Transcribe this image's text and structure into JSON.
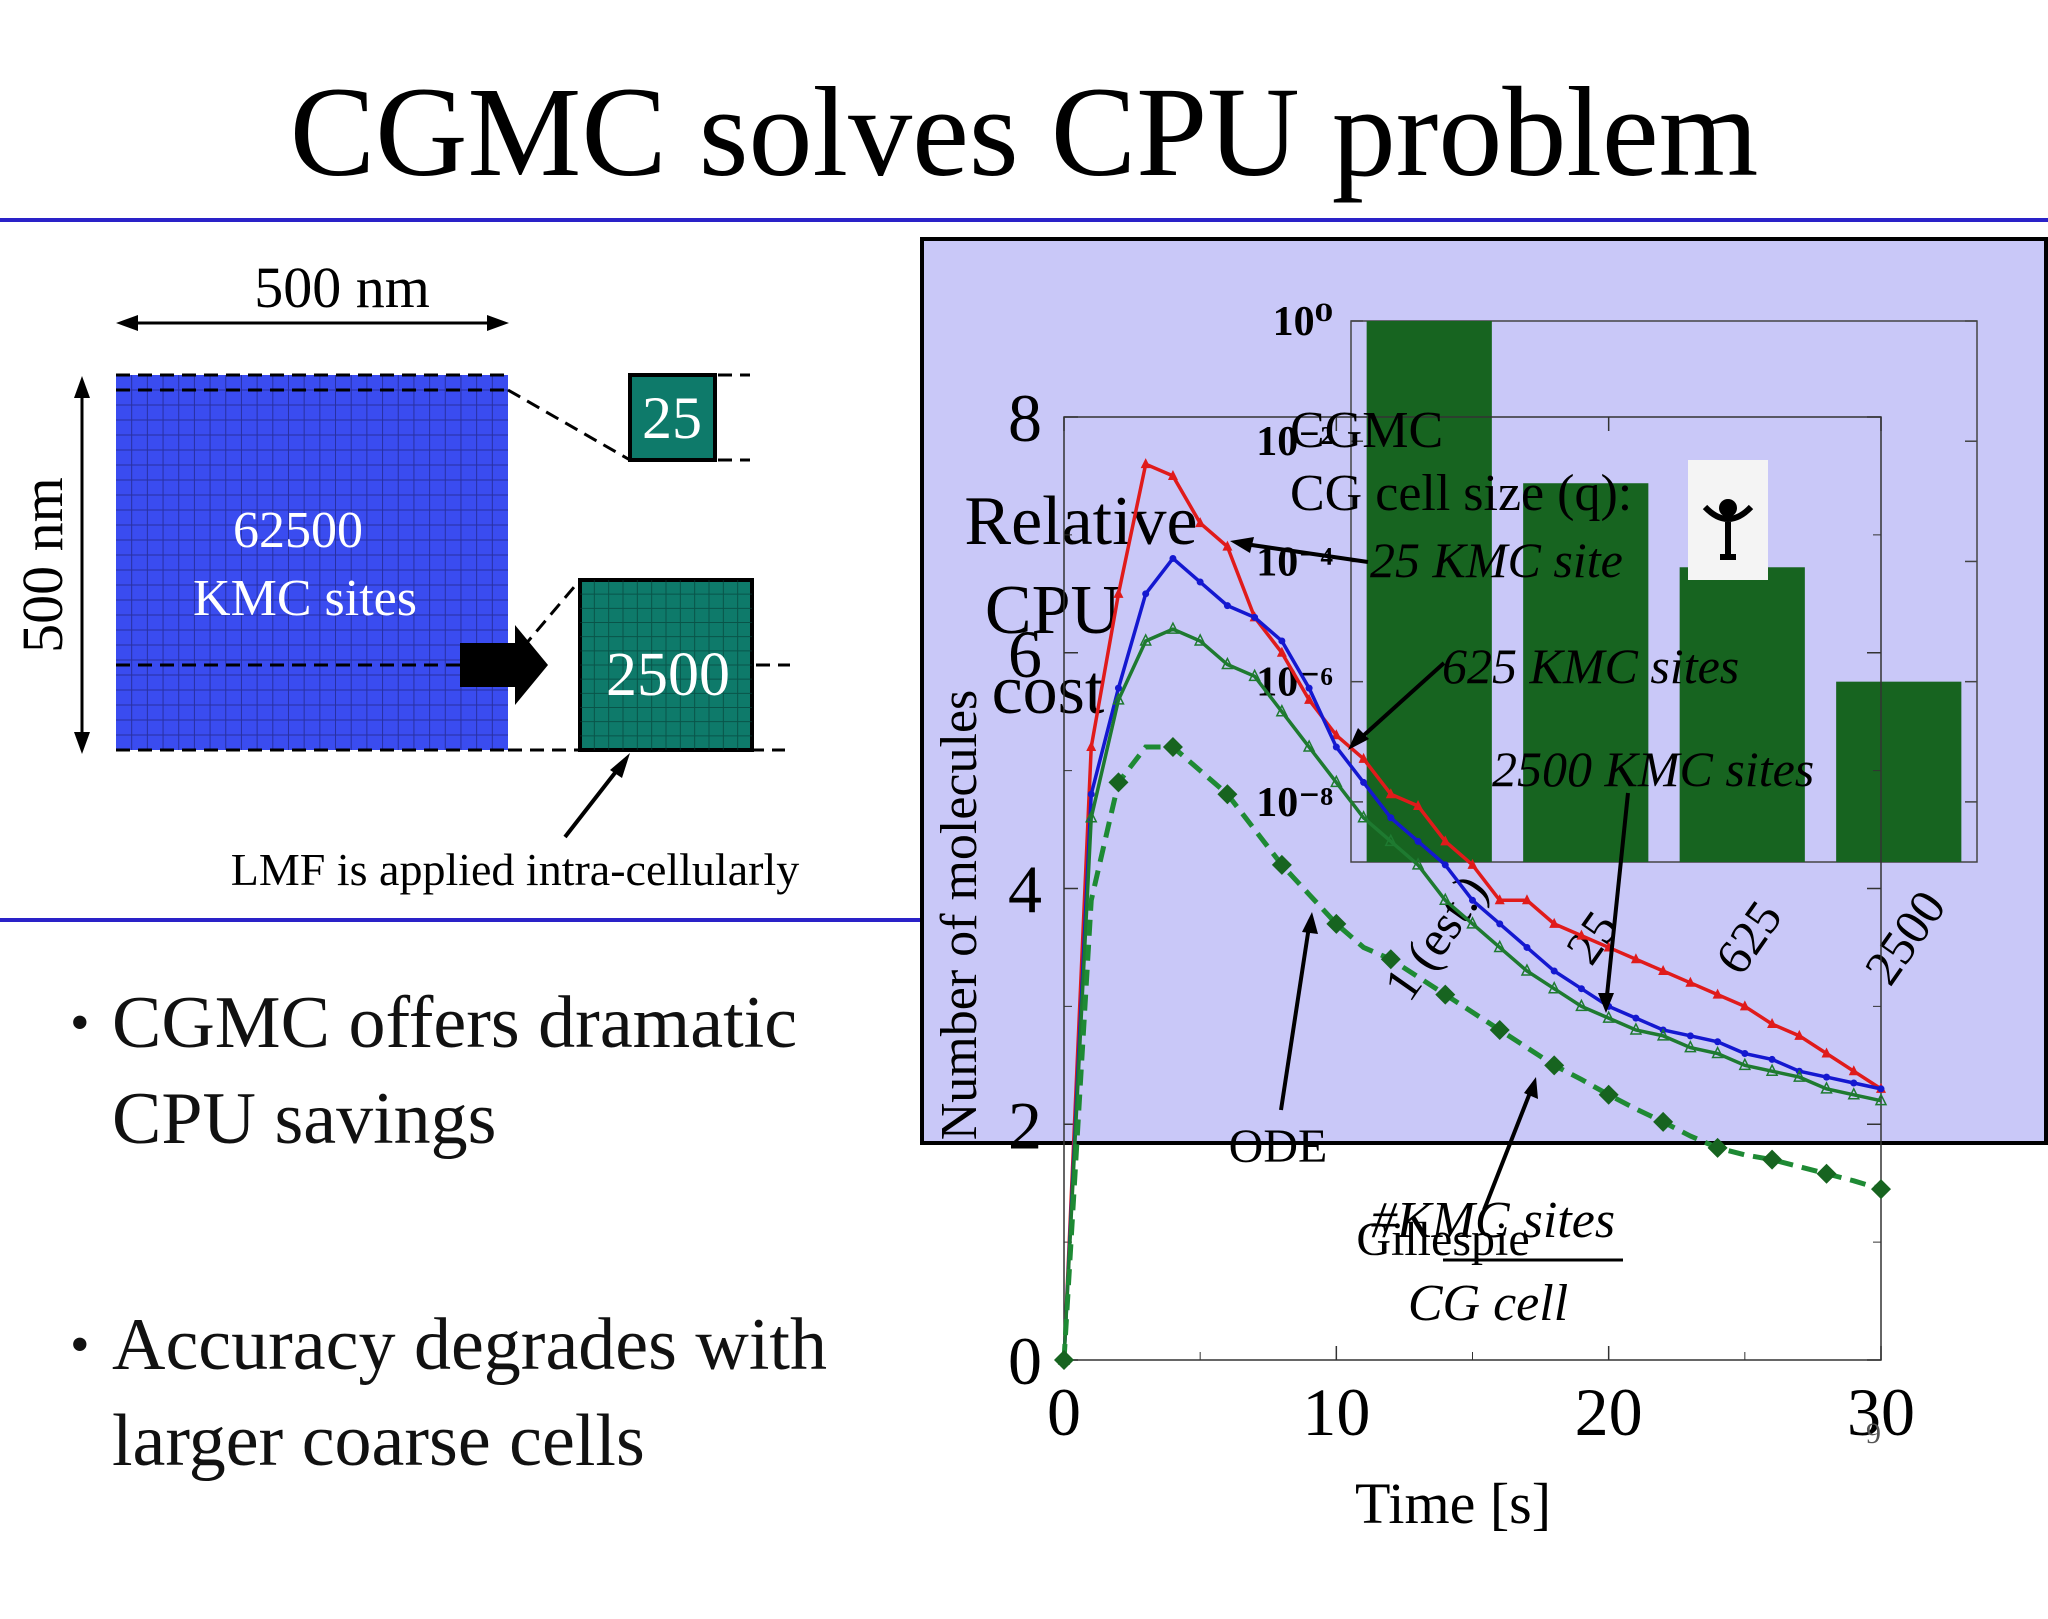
{
  "title": "CGMC solves CPU problem",
  "diagram": {
    "width_label": "500 nm",
    "height_label": "500 nm",
    "sites_count": "62500",
    "sites_label": "KMC sites",
    "small_cell": "25",
    "large_cell": "2500",
    "lmf_note": "LMF is applied intra-cellularly"
  },
  "bullets": [
    "CGMC offers dramatic\nCPU savings",
    "Accuracy degrades with\nlarger coarse cells"
  ],
  "slide_number": "9",
  "colors": {
    "rule": "#2a22c8",
    "kmc_grid": "#3a4cf0",
    "cell": "#0e7a6a",
    "inset_bg": "#c9c8f8",
    "bar": "#176420",
    "red": "#e01b1b",
    "blue": "#1418d0",
    "green": "#1e7a30",
    "gillespie": "#1e8a34"
  },
  "chart_data": [
    {
      "type": "line",
      "xlabel": "Time [s]",
      "ylabel": "Number of molecules",
      "xlim": [
        0,
        30
      ],
      "ylim": [
        0,
        8
      ],
      "xticks": [
        "0",
        "10",
        "20",
        "30"
      ],
      "yticks": [
        "0",
        "2",
        "4",
        "6",
        "8"
      ],
      "annotations": {
        "ode": "ODE",
        "gillespie": "Gillespie",
        "legend_title_1": "CGMC",
        "legend_title_2": "CG cell size (q):",
        "legend_1": "25 KMC site",
        "legend_2": "625 KMC sites",
        "legend_3": "2500 KMC sites"
      },
      "series": [
        {
          "name": "25 KMC site",
          "color": "red",
          "marker": "triangle",
          "dashed": false,
          "x": [
            0,
            1,
            2,
            3,
            4,
            5,
            6,
            7,
            8,
            9,
            10,
            11,
            12,
            13,
            14,
            15,
            16,
            17,
            18,
            19,
            20,
            21,
            22,
            23,
            24,
            25,
            26,
            27,
            28,
            29,
            30
          ],
          "y": [
            0,
            5.2,
            6.5,
            7.6,
            7.5,
            7.1,
            6.9,
            6.3,
            6.0,
            5.6,
            5.3,
            5.1,
            4.8,
            4.7,
            4.4,
            4.2,
            3.9,
            3.9,
            3.7,
            3.6,
            3.5,
            3.4,
            3.3,
            3.2,
            3.1,
            3.0,
            2.85,
            2.75,
            2.6,
            2.45,
            2.3
          ]
        },
        {
          "name": "625 KMC sites",
          "color": "blue",
          "marker": "dot",
          "dashed": false,
          "x": [
            0,
            1,
            2,
            3,
            4,
            5,
            6,
            7,
            8,
            9,
            10,
            11,
            12,
            13,
            14,
            15,
            16,
            17,
            18,
            19,
            20,
            21,
            22,
            23,
            24,
            25,
            26,
            27,
            28,
            29,
            30
          ],
          "y": [
            0,
            4.8,
            5.7,
            6.5,
            6.8,
            6.6,
            6.4,
            6.3,
            6.1,
            5.7,
            5.2,
            4.9,
            4.6,
            4.4,
            4.2,
            3.9,
            3.7,
            3.5,
            3.3,
            3.15,
            3.0,
            2.9,
            2.8,
            2.75,
            2.7,
            2.6,
            2.55,
            2.45,
            2.4,
            2.35,
            2.3
          ]
        },
        {
          "name": "2500 KMC sites",
          "color": "green",
          "marker": "open-triangle",
          "dashed": false,
          "x": [
            0,
            1,
            2,
            3,
            4,
            5,
            6,
            7,
            8,
            9,
            10,
            11,
            12,
            13,
            14,
            15,
            16,
            17,
            18,
            19,
            20,
            21,
            22,
            23,
            24,
            25,
            26,
            27,
            28,
            29,
            30
          ],
          "y": [
            0,
            4.6,
            5.6,
            6.1,
            6.2,
            6.1,
            5.9,
            5.8,
            5.5,
            5.2,
            4.9,
            4.6,
            4.4,
            4.2,
            3.9,
            3.7,
            3.5,
            3.3,
            3.15,
            3.0,
            2.9,
            2.8,
            2.75,
            2.65,
            2.6,
            2.5,
            2.45,
            2.4,
            2.3,
            2.25,
            2.2
          ]
        },
        {
          "name": "Gillespie",
          "color": "gillespie",
          "marker": "diamond",
          "dashed": true,
          "x": [
            0,
            1,
            2,
            3,
            4,
            5,
            6,
            7,
            8,
            9,
            10,
            11,
            12,
            13,
            14,
            15,
            16,
            17,
            18,
            19,
            20,
            21,
            22,
            23,
            24,
            25,
            26,
            27,
            28,
            29,
            30
          ],
          "y": [
            0,
            3.9,
            4.9,
            5.2,
            5.2,
            5.0,
            4.8,
            4.5,
            4.2,
            3.95,
            3.7,
            3.5,
            3.4,
            3.25,
            3.1,
            2.95,
            2.8,
            2.65,
            2.5,
            2.38,
            2.25,
            2.13,
            2.02,
            1.9,
            1.8,
            1.74,
            1.7,
            1.64,
            1.58,
            1.52,
            1.45
          ]
        }
      ]
    },
    {
      "type": "bar",
      "title": "Relative CPU cost",
      "xlabel": "#KMC sites / CG cell",
      "scale": "log",
      "categories": [
        "1 (est.)",
        "25",
        "625",
        "2500"
      ],
      "values": [
        1,
        0.002,
        8e-05,
        1e-06
      ],
      "yticks": [
        "10⁰",
        "10⁻²",
        "10⁻⁴",
        "10⁻⁶",
        "10⁻⁸"
      ],
      "ylim_exponent": [
        -9,
        0
      ]
    }
  ]
}
